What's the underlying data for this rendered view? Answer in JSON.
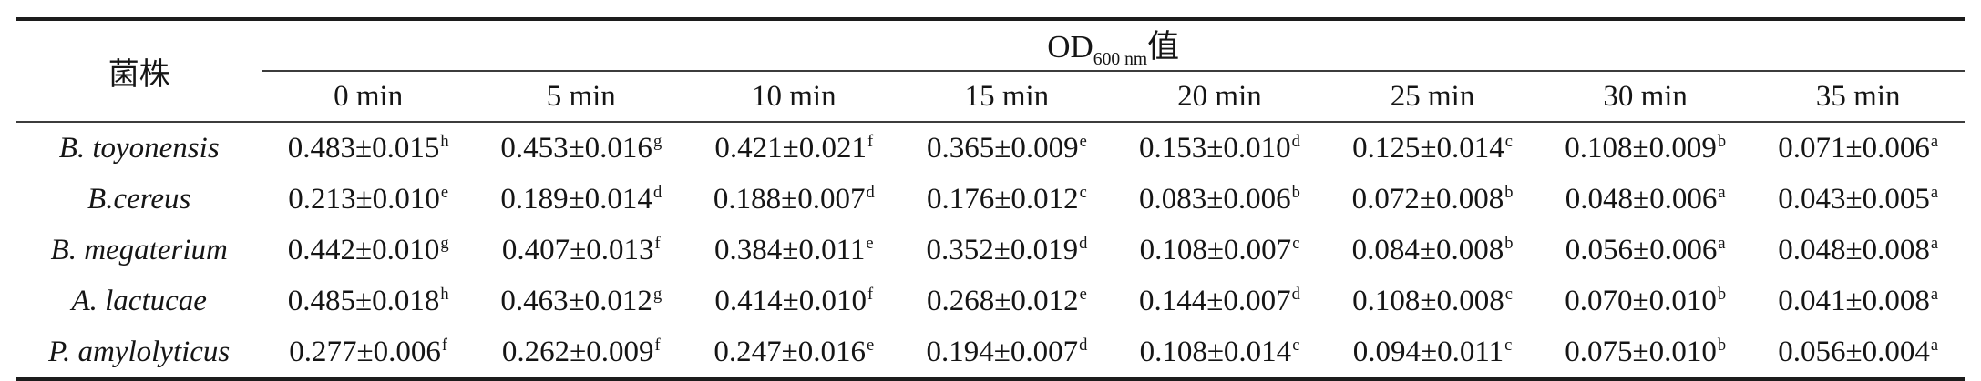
{
  "table": {
    "strain_header": "菌株",
    "od_header": {
      "text": "OD",
      "subscript": "600 nm",
      "suffix": "值"
    },
    "time_headers": [
      "0 min",
      "5 min",
      "10 min",
      "15 min",
      "20 min",
      "25 min",
      "30 min",
      "35 min"
    ],
    "rows": [
      {
        "strain": "B. toyonensis",
        "values": [
          {
            "v": "0.483±0.015",
            "sig": "h"
          },
          {
            "v": "0.453±0.016",
            "sig": "g"
          },
          {
            "v": "0.421±0.021",
            "sig": "f"
          },
          {
            "v": "0.365±0.009",
            "sig": "e"
          },
          {
            "v": "0.153±0.010",
            "sig": "d"
          },
          {
            "v": "0.125±0.014",
            "sig": "c"
          },
          {
            "v": "0.108±0.009",
            "sig": "b"
          },
          {
            "v": "0.071±0.006",
            "sig": "a"
          }
        ]
      },
      {
        "strain": "B.cereus",
        "values": [
          {
            "v": "0.213±0.010",
            "sig": "e"
          },
          {
            "v": "0.189±0.014",
            "sig": "d"
          },
          {
            "v": "0.188±0.007",
            "sig": "d"
          },
          {
            "v": "0.176±0.012",
            "sig": "c"
          },
          {
            "v": "0.083±0.006",
            "sig": "b"
          },
          {
            "v": "0.072±0.008",
            "sig": "b"
          },
          {
            "v": "0.048±0.006",
            "sig": "a"
          },
          {
            "v": "0.043±0.005",
            "sig": "a"
          }
        ]
      },
      {
        "strain": "B. megaterium",
        "values": [
          {
            "v": "0.442±0.010",
            "sig": "g"
          },
          {
            "v": "0.407±0.013",
            "sig": "f"
          },
          {
            "v": "0.384±0.011",
            "sig": "e"
          },
          {
            "v": "0.352±0.019",
            "sig": "d"
          },
          {
            "v": "0.108±0.007",
            "sig": "c"
          },
          {
            "v": "0.084±0.008",
            "sig": "b"
          },
          {
            "v": "0.056±0.006",
            "sig": "a"
          },
          {
            "v": "0.048±0.008",
            "sig": "a"
          }
        ]
      },
      {
        "strain": "A. lactucae",
        "values": [
          {
            "v": "0.485±0.018",
            "sig": "h"
          },
          {
            "v": "0.463±0.012",
            "sig": "g"
          },
          {
            "v": "0.414±0.010",
            "sig": "f"
          },
          {
            "v": "0.268±0.012",
            "sig": "e"
          },
          {
            "v": "0.144±0.007",
            "sig": "d"
          },
          {
            "v": "0.108±0.008",
            "sig": "c"
          },
          {
            "v": "0.070±0.010",
            "sig": "b"
          },
          {
            "v": "0.041±0.008",
            "sig": "a"
          }
        ]
      },
      {
        "strain": "P. amylolyticus",
        "values": [
          {
            "v": "0.277±0.006",
            "sig": "f"
          },
          {
            "v": "0.262±0.009",
            "sig": "f"
          },
          {
            "v": "0.247±0.016",
            "sig": "e"
          },
          {
            "v": "0.194±0.007",
            "sig": "d"
          },
          {
            "v": "0.108±0.014",
            "sig": "c"
          },
          {
            "v": "0.094±0.011",
            "sig": "c"
          },
          {
            "v": "0.075±0.010",
            "sig": "b"
          },
          {
            "v": "0.056±0.004",
            "sig": "a"
          }
        ]
      }
    ]
  }
}
